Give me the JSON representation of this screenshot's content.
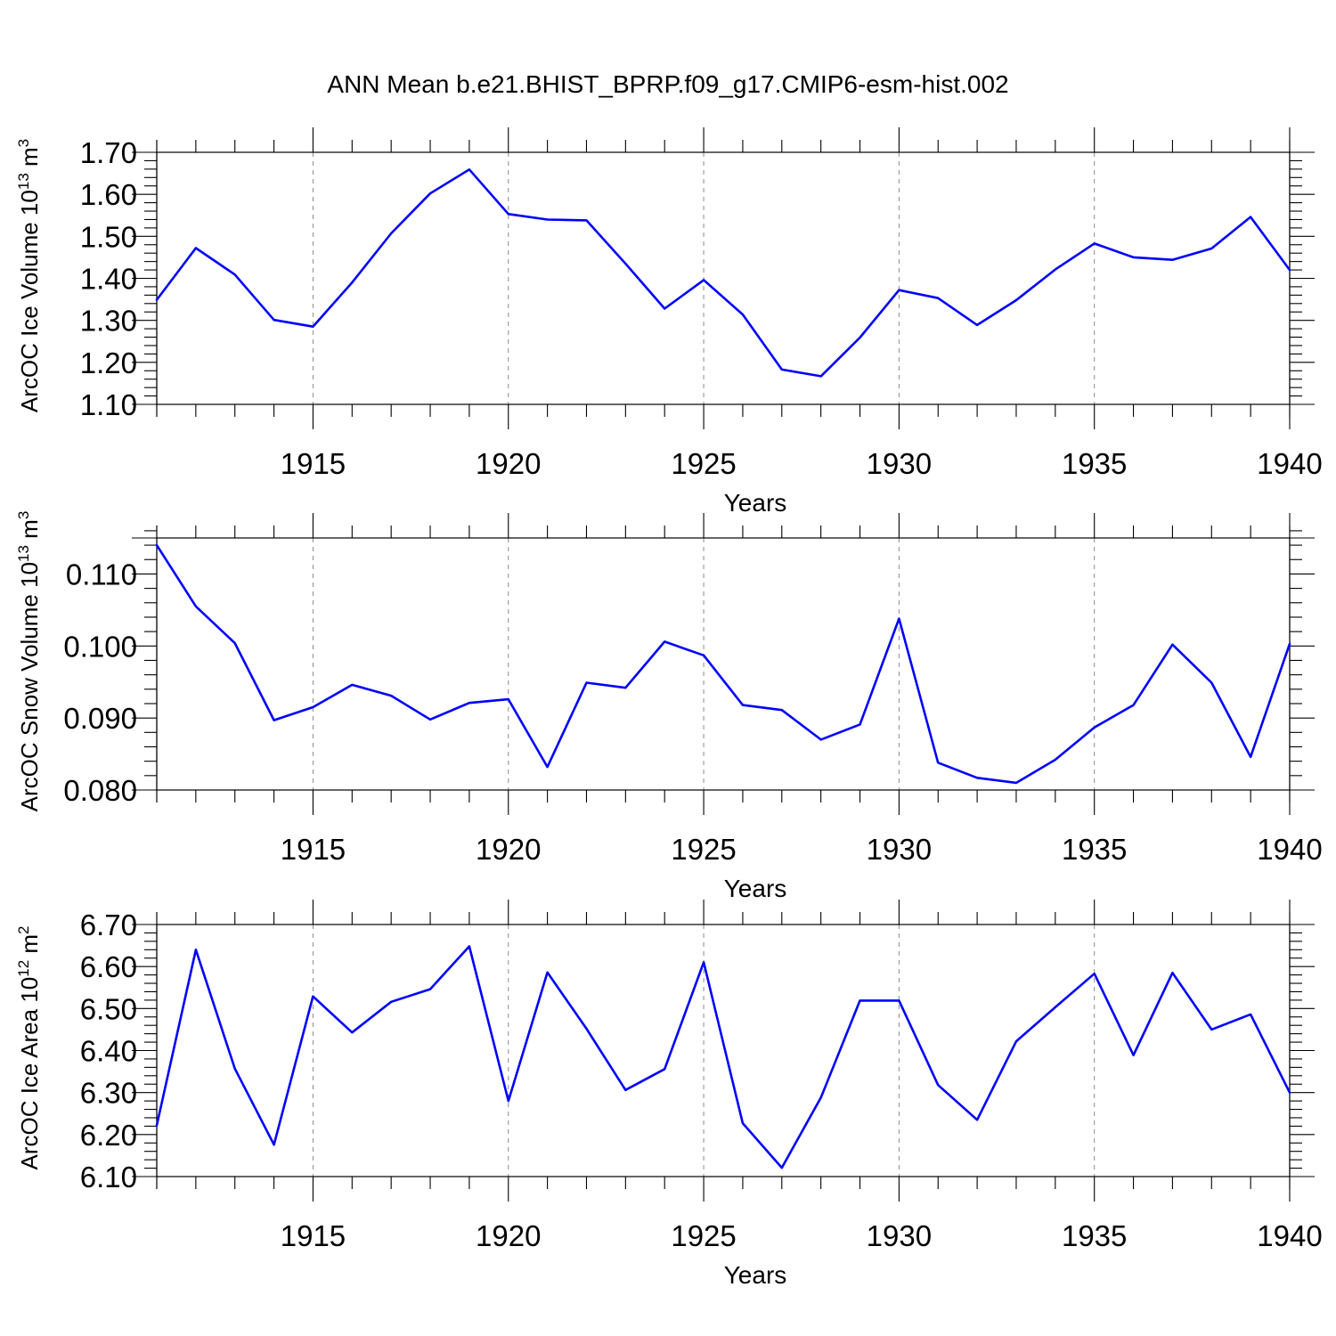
{
  "title": "ANN Mean b.e21.BHIST_BPRP.f09_g17.CMIP6-esm-hist.002",
  "line_color": "#0000ff",
  "chart_data": [
    {
      "type": "line",
      "ylabel": "ArcOC Ice Volume 10",
      "ylabel_exp": "13",
      "ylabel_unit": " m",
      "ylabel_unit_exp": "3",
      "xlabel": "Years",
      "xlim": [
        1911,
        1940
      ],
      "ylim": [
        1.1,
        1.7
      ],
      "x_ticks": [
        1915,
        1920,
        1925,
        1930,
        1935,
        1940
      ],
      "x_tick_labels": [
        "1915",
        "1920",
        "1925",
        "1930",
        "1935",
        "1940"
      ],
      "y_ticks": [
        1.1,
        1.2,
        1.3,
        1.4,
        1.5,
        1.6,
        1.7
      ],
      "y_tick_labels": [
        "1.10",
        "1.20",
        "1.30",
        "1.40",
        "1.50",
        "1.60",
        "1.70"
      ],
      "grid": "vertical dashed at major x ticks",
      "x": [
        1911,
        1912,
        1913,
        1914,
        1915,
        1916,
        1917,
        1918,
        1919,
        1920,
        1921,
        1922,
        1923,
        1924,
        1925,
        1926,
        1927,
        1928,
        1929,
        1930,
        1931,
        1932,
        1933,
        1934,
        1935,
        1936,
        1937,
        1938,
        1939,
        1940
      ],
      "values": [
        1.349,
        1.472,
        1.409,
        1.301,
        1.285,
        1.39,
        1.507,
        1.602,
        1.659,
        1.553,
        1.54,
        1.538,
        1.435,
        1.328,
        1.396,
        1.314,
        1.183,
        1.167,
        1.259,
        1.372,
        1.353,
        1.289,
        1.348,
        1.421,
        1.483,
        1.45,
        1.444,
        1.471,
        1.546,
        1.42
      ]
    },
    {
      "type": "line",
      "ylabel": "ArcOC Snow Volume 10",
      "ylabel_exp": "13",
      "ylabel_unit": " m",
      "ylabel_unit_exp": "3",
      "xlabel": "Years",
      "xlim": [
        1911,
        1940
      ],
      "ylim": [
        0.08,
        0.115
      ],
      "x_ticks": [
        1915,
        1920,
        1925,
        1930,
        1935,
        1940
      ],
      "x_tick_labels": [
        "1915",
        "1920",
        "1925",
        "1930",
        "1935",
        "1940"
      ],
      "y_ticks": [
        0.08,
        0.09,
        0.1,
        0.11
      ],
      "y_tick_labels": [
        "0.080",
        "0.090",
        "0.100",
        "0.110"
      ],
      "grid": "vertical dashed at major x ticks",
      "x": [
        1911,
        1912,
        1913,
        1914,
        1915,
        1916,
        1917,
        1918,
        1919,
        1920,
        1921,
        1922,
        1923,
        1924,
        1925,
        1926,
        1927,
        1928,
        1929,
        1930,
        1931,
        1932,
        1933,
        1934,
        1935,
        1936,
        1937,
        1938,
        1939,
        1940
      ],
      "values": [
        0.114,
        0.1055,
        0.1004,
        0.0897,
        0.0915,
        0.0946,
        0.0931,
        0.0898,
        0.0921,
        0.0926,
        0.0832,
        0.0949,
        0.0942,
        0.1006,
        0.0987,
        0.0918,
        0.0911,
        0.087,
        0.0891,
        0.1038,
        0.0838,
        0.0817,
        0.081,
        0.0842,
        0.0887,
        0.0918,
        0.1002,
        0.0949,
        0.0846,
        0.1003
      ]
    },
    {
      "type": "line",
      "ylabel": "ArcOC Ice Area 10",
      "ylabel_exp": "12",
      "ylabel_unit": " m",
      "ylabel_unit_exp": "2",
      "xlabel": "Years",
      "xlim": [
        1911,
        1940
      ],
      "ylim": [
        6.1,
        6.7
      ],
      "x_ticks": [
        1915,
        1920,
        1925,
        1930,
        1935,
        1940
      ],
      "x_tick_labels": [
        "1915",
        "1920",
        "1925",
        "1930",
        "1935",
        "1940"
      ],
      "y_ticks": [
        6.1,
        6.2,
        6.3,
        6.4,
        6.5,
        6.6,
        6.7
      ],
      "y_tick_labels": [
        "6.10",
        "6.20",
        "6.30",
        "6.40",
        "6.50",
        "6.60",
        "6.70"
      ],
      "grid": "vertical dashed at major x ticks",
      "x": [
        1911,
        1912,
        1913,
        1914,
        1915,
        1916,
        1917,
        1918,
        1919,
        1920,
        1921,
        1922,
        1923,
        1924,
        1925,
        1926,
        1927,
        1928,
        1929,
        1930,
        1931,
        1932,
        1933,
        1934,
        1935,
        1936,
        1937,
        1938,
        1939,
        1940
      ],
      "values": [
        6.222,
        6.64,
        6.357,
        6.176,
        6.529,
        6.443,
        6.516,
        6.546,
        6.648,
        6.28,
        6.586,
        6.452,
        6.306,
        6.356,
        6.61,
        6.227,
        6.121,
        6.288,
        6.519,
        6.519,
        6.318,
        6.235,
        6.422,
        6.503,
        6.583,
        6.389,
        6.585,
        6.45,
        6.486,
        6.3
      ]
    }
  ]
}
